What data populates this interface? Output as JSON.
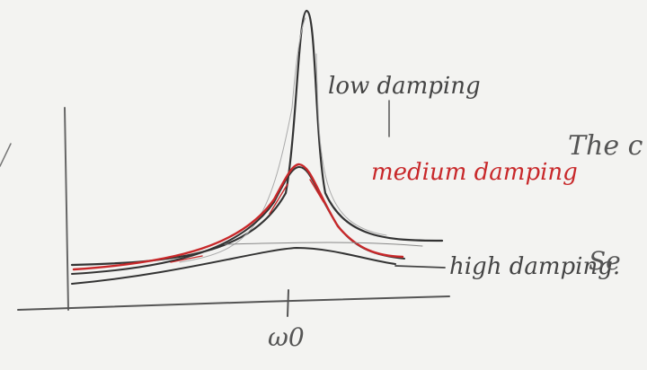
{
  "labels": {
    "low": "low damping",
    "medium": "medium damping",
    "high": "high damping.",
    "omega": "ω0"
  },
  "margin_text": {
    "line1": "The c",
    "line2": "Se"
  }
}
